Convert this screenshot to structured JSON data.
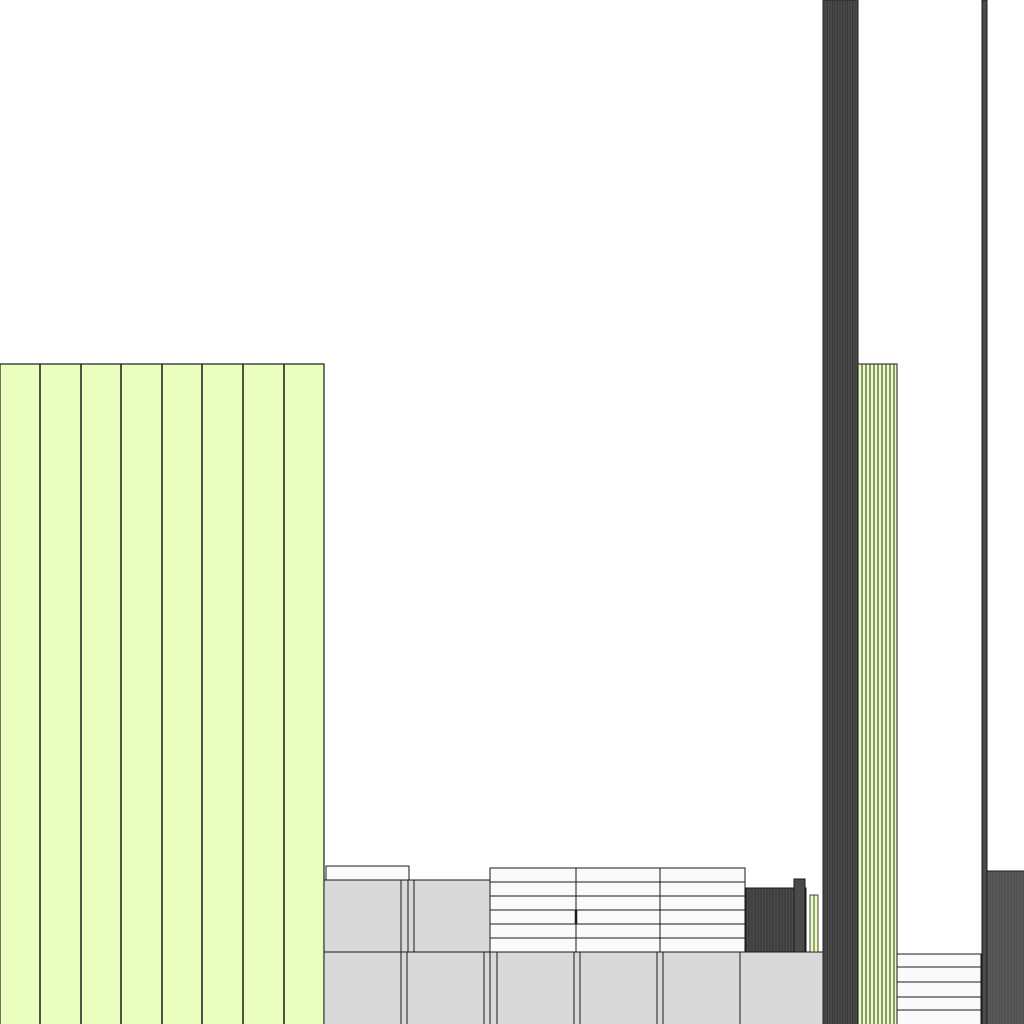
{
  "colors": {
    "background": "#ffffff",
    "facade_green": "#eaffbf",
    "facade_gray": "#d9d9d9",
    "facade_white": "#fafafa",
    "dark_structure": "#4a4a4a",
    "outline": "#1a1a1a"
  },
  "elements": [
    {
      "name": "left-striped-facade",
      "fill_key": "facade_green"
    },
    {
      "name": "tall-dark-column",
      "fill_key": "dark_structure"
    },
    {
      "name": "right-striped-facade",
      "fill_key": "facade_green"
    },
    {
      "name": "far-right-thin-column",
      "fill_key": "dark_structure"
    },
    {
      "name": "far-right-dark-block",
      "fill_key": "dark_structure"
    },
    {
      "name": "low-gray-building",
      "fill_key": "facade_gray"
    },
    {
      "name": "low-white-banded-block",
      "fill_key": "facade_white"
    },
    {
      "name": "low-dark-block",
      "fill_key": "dark_structure"
    },
    {
      "name": "right-low-white-block",
      "fill_key": "facade_white"
    }
  ]
}
